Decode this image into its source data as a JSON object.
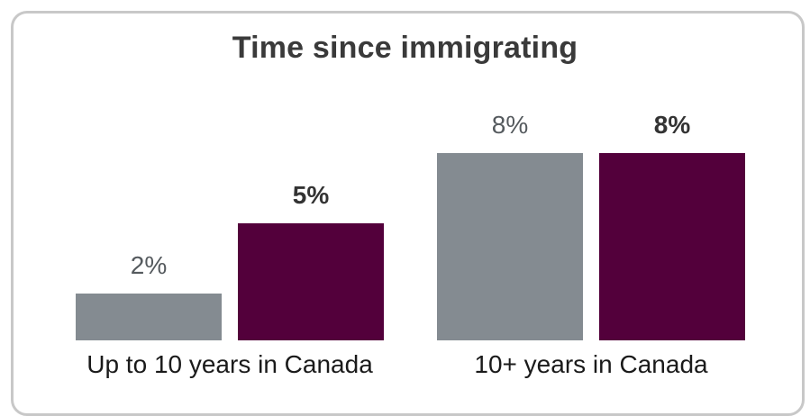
{
  "chart_data": {
    "type": "bar",
    "title": "Time since immigrating",
    "categories": [
      "Up to 10 years in Canada",
      "10+ years in Canada"
    ],
    "series": [
      {
        "values": [
          2,
          8
        ],
        "labels": [
          "2%",
          "8%"
        ],
        "color": "#848b91",
        "label_style": "light"
      },
      {
        "values": [
          5,
          8
        ],
        "labels": [
          "5%",
          "8%"
        ],
        "color": "#53003b",
        "label_style": "bold"
      }
    ],
    "ylim": [
      0,
      10
    ],
    "grid": false,
    "legend": "none"
  }
}
